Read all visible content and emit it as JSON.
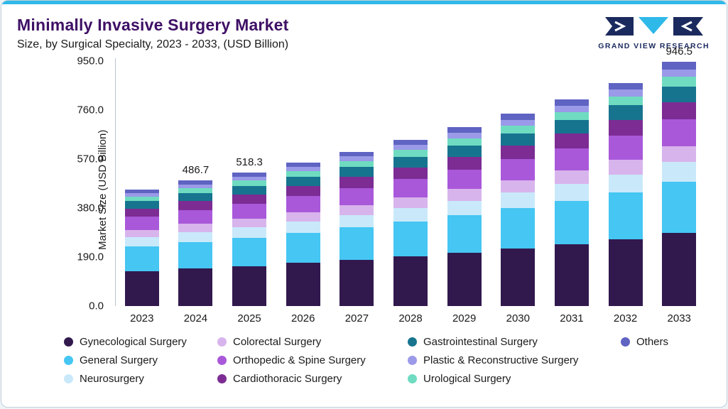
{
  "header": {
    "title": "Minimally Invasive Surgery Market",
    "subtitle": "Size, by Surgical Specialty, 2023 - 2033, (USD Billion)",
    "logo_text": "GRAND VIEW RESEARCH"
  },
  "colors": {
    "accent_strip": "#2FB9E9",
    "title_color": "#3E1065",
    "logo_navy": "#1B2A5E",
    "logo_cyan": "#2FB9E9",
    "axis_line": "#B9C2C9"
  },
  "chart_data": {
    "type": "bar",
    "stacked": true,
    "title": "Minimally Invasive Surgery Market",
    "subtitle": "Size, by Surgical Specialty, 2023 - 2033, (USD Billion)",
    "ylabel": "Market Size (USD Billion)",
    "ylim": [
      0,
      950
    ],
    "ytick_values": [
      0,
      190,
      380,
      570,
      760,
      950
    ],
    "ytick_labels": [
      "0.0",
      "190.0",
      "380.0",
      "570.0",
      "760.0",
      "950.0"
    ],
    "categories": [
      "2023",
      "2024",
      "2025",
      "2026",
      "2027",
      "2028",
      "2029",
      "2030",
      "2031",
      "2032",
      "2033"
    ],
    "bar_labels": {
      "2024": "486.7",
      "2025": "518.3",
      "2033": "946.5"
    },
    "series": [
      {
        "name": "Gynecological Surgery",
        "color": "#31194E",
        "values": [
          135.6,
          146.0,
          155.5,
          167.1,
          179.7,
          193.2,
          207.9,
          223.5,
          240.3,
          259.5,
          284.0
        ]
      },
      {
        "name": "General Surgery",
        "color": "#45C6F3",
        "values": [
          94.9,
          102.2,
          108.8,
          117.0,
          125.8,
          135.2,
          145.5,
          156.5,
          168.2,
          181.7,
          198.8
        ]
      },
      {
        "name": "Neurosurgery",
        "color": "#C9E9FB",
        "values": [
          36.2,
          38.9,
          41.5,
          44.6,
          47.9,
          51.5,
          55.4,
          59.6,
          64.1,
          69.2,
          75.7
        ]
      },
      {
        "name": "Colorectal Surgery",
        "color": "#D8B4EC",
        "values": [
          29.4,
          31.6,
          33.7,
          36.2,
          38.9,
          41.9,
          45.0,
          48.4,
          52.1,
          56.2,
          61.5
        ]
      },
      {
        "name": "Orthopedic & Spine Surgery",
        "color": "#A958DA",
        "values": [
          49.7,
          53.5,
          57.0,
          61.3,
          65.9,
          70.8,
          76.2,
          82.0,
          88.1,
          95.2,
          104.1
        ]
      },
      {
        "name": "Cardiothoracic Surgery",
        "color": "#7C2C93",
        "values": [
          31.6,
          34.1,
          36.3,
          39.0,
          41.9,
          45.1,
          48.5,
          52.2,
          56.1,
          60.6,
          66.3
        ]
      },
      {
        "name": "Gastrointestinal Surgery",
        "color": "#17748F",
        "values": [
          29.4,
          31.6,
          33.7,
          36.2,
          38.9,
          41.9,
          45.0,
          48.4,
          52.1,
          56.2,
          61.5
        ]
      },
      {
        "name": "Urological Surgery",
        "color": "#6FDCC1",
        "values": [
          18.1,
          19.5,
          20.7,
          22.3,
          24.0,
          25.8,
          27.7,
          29.8,
          32.0,
          34.6,
          37.9
        ]
      },
      {
        "name": "Plastic & Reconstructive Surgery",
        "color": "#9A9AE8",
        "values": [
          13.6,
          14.6,
          15.5,
          16.7,
          18.0,
          19.3,
          20.8,
          22.4,
          24.0,
          26.0,
          28.4
        ]
      },
      {
        "name": "Others",
        "color": "#5F63C2",
        "values": [
          13.6,
          14.6,
          15.5,
          16.7,
          18.0,
          19.3,
          20.8,
          22.4,
          24.0,
          26.0,
          28.4
        ]
      }
    ],
    "legend_position": "bottom",
    "legend_rows": [
      [
        "Gynecological Surgery",
        "Colorectal Surgery",
        "Gastrointestinal Surgery",
        "Others"
      ],
      [
        "General Surgery",
        "Orthopedic & Spine Surgery",
        "Plastic & Reconstructive Surgery"
      ],
      [
        "Neurosurgery",
        "Cardiothoracic Surgery",
        "Urological Surgery"
      ]
    ]
  }
}
